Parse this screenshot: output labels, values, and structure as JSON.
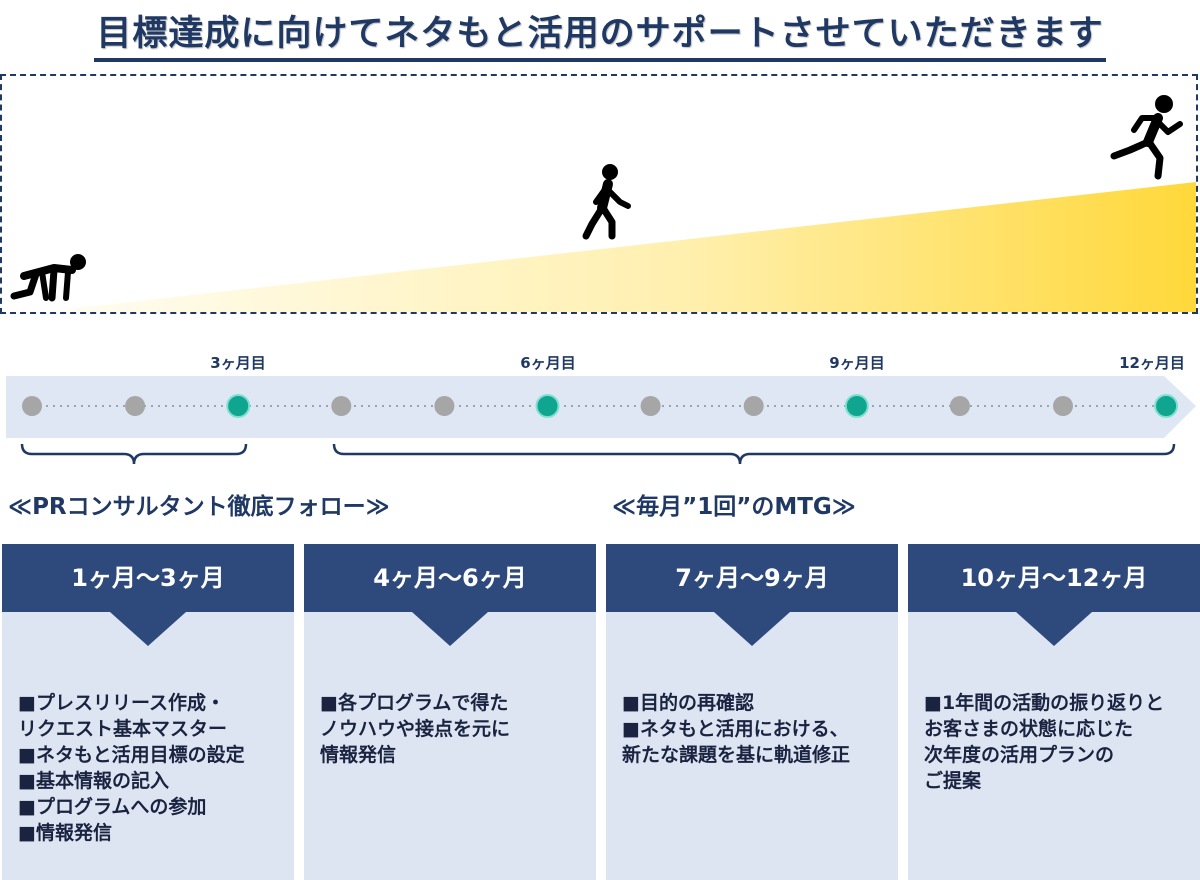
{
  "title": "目標達成に向けてネタもと活用のサポートさせていただきます",
  "colors": {
    "navy": "#1f3864",
    "card_header": "#2e4a7d",
    "card_bg": "#dde5f3",
    "timeline_bg": "#dfe7f5",
    "dot_active": "#10a58e",
    "dot_inactive": "#a6a6a6",
    "gradient_end": "#ffd83a"
  },
  "figures": [
    {
      "name": "crouching-runner-icon"
    },
    {
      "name": "walking-person-icon"
    },
    {
      "name": "running-person-icon"
    }
  ],
  "timeline": {
    "month_labels": [
      "3ヶ月目",
      "6ヶ月目",
      "9ヶ月目",
      "12ヶ月目"
    ],
    "dots": [
      false,
      false,
      true,
      false,
      false,
      true,
      false,
      false,
      true,
      false,
      false,
      true
    ]
  },
  "phases": [
    {
      "label": "≪PRコンサルタント徹底フォロー≫",
      "months_from": 1,
      "months_to": 3
    },
    {
      "label": "≪毎月”1回”のMTG≫",
      "months_from": 4,
      "months_to": 12
    }
  ],
  "cards": [
    {
      "header": "1ヶ月～3ヶ月",
      "lines": [
        "■プレスリリース作成・",
        "リクエスト基本マスター",
        "■ネタもと活用目標の設定",
        "■基本情報の記入",
        "■プログラムへの参加",
        "■情報発信"
      ]
    },
    {
      "header": "4ヶ月～6ヶ月",
      "lines": [
        "■各プログラムで得た",
        "ノウハウや接点を元に",
        "情報発信"
      ]
    },
    {
      "header": "7ヶ月～9ヶ月",
      "lines": [
        "■目的の再確認",
        "■ネタもと活用における、",
        "新たな課題を基に軌道修正"
      ]
    },
    {
      "header": "10ヶ月～12ヶ月",
      "lines": [
        "■1年間の活動の振り返りと",
        "お客さまの状態に応じた",
        "次年度の活用プランの",
        "ご提案"
      ]
    }
  ]
}
